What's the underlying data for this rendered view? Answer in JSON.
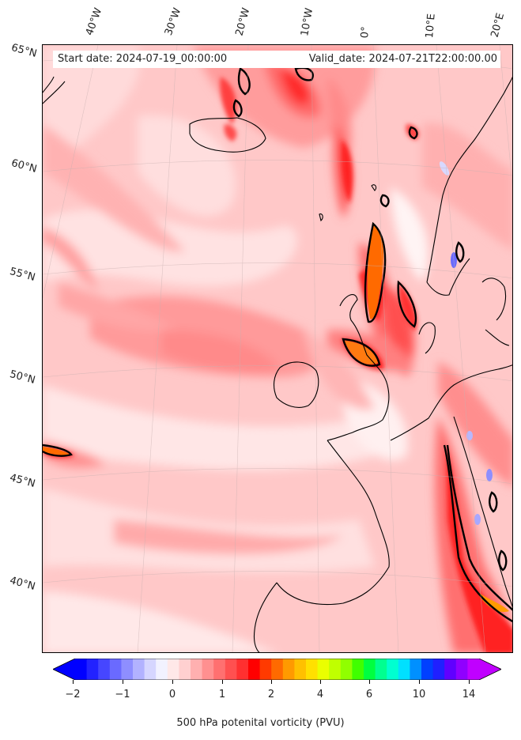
{
  "header": {
    "start_date": "Start date: 2024-07-19_00:00:00",
    "valid_date": "Valid_date: 2024-07-21T22:00:00.00"
  },
  "map": {
    "longitude_labels": [
      "40°W",
      "30°W",
      "20°W",
      "10°W",
      "0°",
      "10°E",
      "20°E"
    ],
    "latitude_labels": [
      "65°N",
      "60°N",
      "55°N",
      "50°N",
      "45°N",
      "40°N"
    ],
    "region": "North Atlantic and Western Europe",
    "field": "potential vorticity at 500 hPa",
    "contour_line": "black contour at 2 PVU"
  },
  "colorbar": {
    "label": "500 hPa potenital vorticity (PVU)",
    "tick_labels": [
      "−2",
      "−1",
      "0",
      "1",
      "2",
      "4",
      "6",
      "10",
      "14"
    ],
    "extend": "both",
    "colors": [
      "#0000ff",
      "#2222ff",
      "#4646ff",
      "#6a6aff",
      "#8e8eff",
      "#b2b2ff",
      "#d6d6ff",
      "#f2f2ff",
      "#ffe8e8",
      "#ffd0d0",
      "#ffb0b0",
      "#ff9090",
      "#ff7070",
      "#ff5050",
      "#ff3030",
      "#ff0000",
      "#ff3a00",
      "#ff6a00",
      "#ff9a00",
      "#ffc000",
      "#ffe000",
      "#eaff00",
      "#c0ff00",
      "#90ff00",
      "#40ff00",
      "#00ff40",
      "#00ff90",
      "#00ffd0",
      "#00e0ff",
      "#0090ff",
      "#0040ff",
      "#2020ff",
      "#6000ff",
      "#9000ff",
      "#c000ff"
    ],
    "under_color": "#0000ff",
    "over_color": "#c000ff"
  }
}
